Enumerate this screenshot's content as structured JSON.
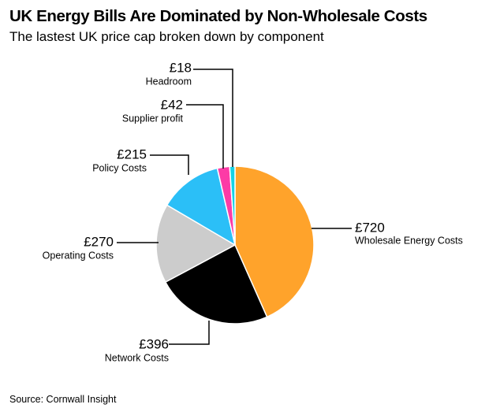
{
  "title": "UK Energy Bills Are Dominated by Non-Wholesale Costs",
  "subtitle": "The lastest UK price cap broken down by component",
  "source": "Source: Cornwall Insight",
  "chart_data": {
    "type": "pie",
    "unit": "£",
    "slices": [
      {
        "label": "Wholesale Energy Costs",
        "value": 720,
        "value_label": "£720",
        "color": "#ffa32b"
      },
      {
        "label": "Network Costs",
        "value": 396,
        "value_label": "£396",
        "color": "#000000"
      },
      {
        "label": "Operating Costs",
        "value": 270,
        "value_label": "£270",
        "color": "#cccccc"
      },
      {
        "label": "Policy Costs",
        "value": 215,
        "value_label": "£215",
        "color": "#2bbff7"
      },
      {
        "label": "Supplier profit",
        "value": 42,
        "value_label": "£42",
        "color": "#fc3ba6"
      },
      {
        "label": "Headroom",
        "value": 18,
        "value_label": "£18",
        "color": "#15d2e6"
      }
    ]
  }
}
